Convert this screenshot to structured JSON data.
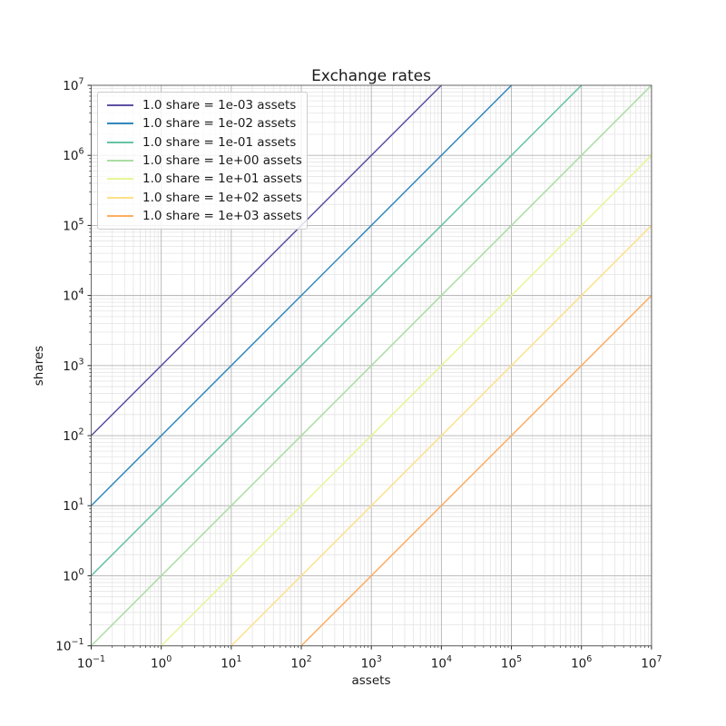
{
  "figure": {
    "background": "#ffffff",
    "title": "Exchange rates",
    "xlabel": "assets",
    "ylabel": "shares"
  },
  "chart_data": {
    "type": "line",
    "title": "Exchange rates",
    "xlabel": "assets",
    "ylabel": "shares",
    "x_scale": "log",
    "y_scale": "log",
    "xlim": [
      0.1,
      10000000
    ],
    "ylim": [
      0.1,
      10000000
    ],
    "x_tick_exponents": [
      -1,
      0,
      1,
      2,
      3,
      4,
      5,
      6,
      7
    ],
    "y_tick_exponents": [
      -1,
      0,
      1,
      2,
      3,
      4,
      5,
      6,
      7
    ],
    "tick_label_base": "10",
    "grid": "both",
    "legend_position": "upper left",
    "relation": "shares = assets / rate",
    "series": [
      {
        "label": "1.0 share = 1e-03 assets",
        "rate": 0.001,
        "color": "#5e4fa2",
        "points": [
          [
            0.1,
            100
          ],
          [
            10000,
            10000000
          ]
        ]
      },
      {
        "label": "1.0 share = 1e-02 assets",
        "rate": 0.01,
        "color": "#3288bd",
        "points": [
          [
            0.1,
            10
          ],
          [
            100000,
            10000000
          ]
        ]
      },
      {
        "label": "1.0 share = 1e-01 assets",
        "rate": 0.1,
        "color": "#66c2a5",
        "points": [
          [
            0.1,
            1
          ],
          [
            1000000,
            10000000
          ]
        ]
      },
      {
        "label": "1.0 share = 1e+00 assets",
        "rate": 1.0,
        "color": "#abdda4",
        "points": [
          [
            0.1,
            0.1
          ],
          [
            10000000,
            10000000
          ]
        ]
      },
      {
        "label": "1.0 share = 1e+01 assets",
        "rate": 10.0,
        "color": "#e6f598",
        "points": [
          [
            1,
            0.1
          ],
          [
            10000000,
            1000000
          ]
        ]
      },
      {
        "label": "1.0 share = 1e+02 assets",
        "rate": 100.0,
        "color": "#fee08b",
        "points": [
          [
            10,
            0.1
          ],
          [
            10000000,
            100000
          ]
        ]
      },
      {
        "label": "1.0 share = 1e+03 assets",
        "rate": 1000.0,
        "color": "#fdae61",
        "points": [
          [
            100,
            0.1
          ],
          [
            10000000,
            10000
          ]
        ]
      }
    ],
    "style": {
      "line_width": 1.5,
      "major_grid_color": "#b3b3b3",
      "minor_grid_color": "#e4e4e4",
      "frame_color": "#666666",
      "tick_color": "#262626",
      "text_color": "#1a1a1a"
    }
  }
}
